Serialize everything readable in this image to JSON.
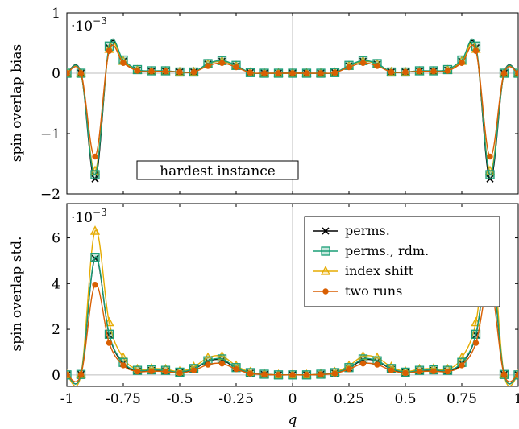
{
  "chart_data": [
    {
      "type": "line",
      "ylabel": "spin overlap bias",
      "multiplier": "·10",
      "multiplier_exp": "−3",
      "annotation": "hardest instance",
      "xlim": [
        -1,
        1
      ],
      "ylim": [
        -2,
        1
      ],
      "yticks": [
        -2,
        -1,
        0,
        1
      ],
      "ytick_labels": [
        "−2",
        "−1",
        "0",
        "1"
      ],
      "xticks": [
        -1,
        -0.75,
        -0.5,
        -0.25,
        0,
        0.25,
        0.5,
        0.75,
        1
      ],
      "grid": "zero lines",
      "x": [
        -1,
        -0.9375,
        -0.875,
        -0.8125,
        -0.75,
        -0.6875,
        -0.625,
        -0.5625,
        -0.5,
        -0.4375,
        -0.375,
        -0.3125,
        -0.25,
        -0.1875,
        -0.125,
        -0.0625,
        0,
        0.0625,
        0.125,
        0.1875,
        0.25,
        0.3125,
        0.375,
        0.4375,
        0.5,
        0.5625,
        0.625,
        0.6875,
        0.75,
        0.8125,
        0.875,
        0.9375,
        1
      ],
      "series": [
        {
          "name": "perms.",
          "color": "#000000",
          "marker": "cross",
          "values": [
            0,
            0,
            -1.75,
            0.42,
            0.2,
            0.05,
            0.03,
            0.03,
            0.02,
            0.02,
            0.15,
            0.2,
            0.12,
            0.01,
            0,
            0,
            0,
            0,
            0,
            0.01,
            0.12,
            0.2,
            0.15,
            0.02,
            0.02,
            0.03,
            0.03,
            0.05,
            0.2,
            0.42,
            -1.75,
            0,
            0
          ]
        },
        {
          "name": "perms., rdm.",
          "color": "#1a9e77",
          "marker": "square",
          "values": [
            0,
            0,
            -1.68,
            0.45,
            0.22,
            0.06,
            0.04,
            0.04,
            0.02,
            0.02,
            0.16,
            0.21,
            0.13,
            0.01,
            0,
            0,
            0,
            0,
            0,
            0.01,
            0.13,
            0.21,
            0.16,
            0.02,
            0.02,
            0.04,
            0.04,
            0.06,
            0.22,
            0.45,
            -1.68,
            0,
            0
          ]
        },
        {
          "name": "index shift",
          "color": "#e6ab02",
          "marker": "triangle",
          "values": [
            0,
            0,
            -1.62,
            0.4,
            0.2,
            0.05,
            0.03,
            0.03,
            0.02,
            0.02,
            0.15,
            0.2,
            0.12,
            0.01,
            0,
            0,
            0,
            0,
            0,
            0.01,
            0.12,
            0.2,
            0.15,
            0.02,
            0.02,
            0.03,
            0.03,
            0.05,
            0.2,
            0.4,
            -1.62,
            0,
            0
          ]
        },
        {
          "name": "two runs",
          "color": "#d95f02",
          "marker": "circle",
          "values": [
            0,
            0,
            -1.38,
            0.37,
            0.17,
            0.04,
            0.03,
            0.03,
            0.02,
            0.02,
            0.12,
            0.17,
            0.1,
            0.01,
            0,
            0,
            0,
            0,
            0,
            0.01,
            0.1,
            0.17,
            0.12,
            0.02,
            0.02,
            0.03,
            0.03,
            0.04,
            0.17,
            0.37,
            -1.38,
            0,
            0
          ]
        }
      ]
    },
    {
      "type": "line",
      "ylabel": "spin overlap std.",
      "xlabel": "q",
      "multiplier": "·10",
      "multiplier_exp": "−3",
      "xlim": [
        -1,
        1
      ],
      "ylim": [
        -0.5,
        7.5
      ],
      "yticks": [
        0,
        2,
        4,
        6
      ],
      "ytick_labels": [
        "0",
        "2",
        "4",
        "6"
      ],
      "xticks": [
        -1,
        -0.75,
        -0.5,
        -0.25,
        0,
        0.25,
        0.5,
        0.75,
        1
      ],
      "xtick_labels": [
        "-1",
        "-0.75",
        "-0.5",
        "-0.25",
        "0",
        "0.25",
        "0.5",
        "0.75",
        "1"
      ],
      "legend_position": "top-right",
      "grid": "zero lines",
      "x": [
        -1,
        -0.9375,
        -0.875,
        -0.8125,
        -0.75,
        -0.6875,
        -0.625,
        -0.5625,
        -0.5,
        -0.4375,
        -0.375,
        -0.3125,
        -0.25,
        -0.1875,
        -0.125,
        -0.0625,
        0,
        0.0625,
        0.125,
        0.1875,
        0.25,
        0.3125,
        0.375,
        0.4375,
        0.5,
        0.5625,
        0.625,
        0.6875,
        0.75,
        0.8125,
        0.875,
        0.9375,
        1
      ],
      "series": [
        {
          "name": "perms.",
          "color": "#000000",
          "marker": "cross",
          "values": [
            0,
            0.02,
            5.1,
            1.75,
            0.5,
            0.18,
            0.2,
            0.18,
            0.1,
            0.25,
            0.6,
            0.65,
            0.3,
            0.08,
            0.02,
            0,
            0,
            0,
            0.02,
            0.08,
            0.3,
            0.65,
            0.6,
            0.25,
            0.1,
            0.18,
            0.2,
            0.18,
            0.5,
            1.75,
            5.1,
            0.02,
            0
          ]
        },
        {
          "name": "perms., rdm.",
          "color": "#1a9e77",
          "marker": "square",
          "values": [
            0,
            0.02,
            5.15,
            1.78,
            0.55,
            0.2,
            0.22,
            0.2,
            0.12,
            0.28,
            0.62,
            0.7,
            0.32,
            0.1,
            0.03,
            0,
            0,
            0,
            0.03,
            0.1,
            0.32,
            0.7,
            0.62,
            0.28,
            0.12,
            0.2,
            0.22,
            0.2,
            0.55,
            1.78,
            5.15,
            0.02,
            0
          ]
        },
        {
          "name": "index shift",
          "color": "#e6ab02",
          "marker": "triangle",
          "values": [
            0,
            0.02,
            6.3,
            2.3,
            0.75,
            0.25,
            0.28,
            0.25,
            0.15,
            0.35,
            0.75,
            0.82,
            0.4,
            0.12,
            0.04,
            0,
            0,
            0,
            0.04,
            0.12,
            0.4,
            0.82,
            0.75,
            0.35,
            0.15,
            0.25,
            0.28,
            0.25,
            0.75,
            2.3,
            6.3,
            0.02,
            0
          ]
        },
        {
          "name": "two runs",
          "color": "#d95f02",
          "marker": "circle",
          "values": [
            0,
            0.02,
            3.95,
            1.4,
            0.42,
            0.15,
            0.16,
            0.15,
            0.08,
            0.2,
            0.45,
            0.5,
            0.25,
            0.06,
            0.02,
            0,
            0,
            0,
            0.02,
            0.06,
            0.25,
            0.5,
            0.45,
            0.2,
            0.08,
            0.15,
            0.16,
            0.15,
            0.42,
            1.4,
            3.95,
            0.02,
            0
          ]
        }
      ]
    }
  ]
}
